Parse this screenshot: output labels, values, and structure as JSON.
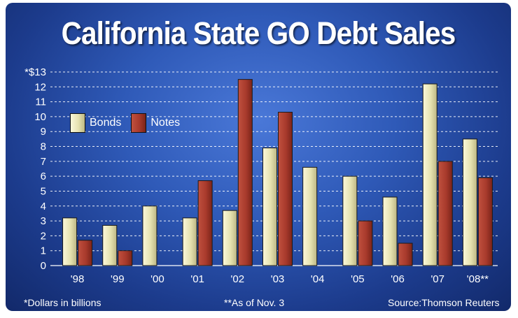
{
  "chart_data": {
    "type": "bar",
    "title": "California State GO Debt Sales",
    "categories": [
      "'98",
      "'99",
      "'00",
      "'01",
      "'02",
      "'03",
      "'04",
      "'05",
      "'06",
      "'07",
      "'08**"
    ],
    "series": [
      {
        "name": "Bonds",
        "values": [
          3.2,
          2.7,
          4.0,
          3.2,
          3.7,
          7.9,
          6.6,
          6.0,
          4.6,
          12.2,
          8.5
        ]
      },
      {
        "name": "Notes",
        "values": [
          1.7,
          1.0,
          0,
          5.7,
          12.5,
          10.3,
          0,
          3.0,
          1.5,
          7.0,
          5.9
        ]
      }
    ],
    "ylim": [
      0,
      13
    ],
    "yticks": [
      "0",
      "1",
      "2",
      "3",
      "4",
      "5",
      "6",
      "7",
      "8",
      "9",
      "10",
      "11",
      "12",
      "*$13"
    ],
    "grid": true,
    "legend_position": "top-left",
    "colors": {
      "Bonds": "#e6e2b0",
      "Notes": "#a83a2c"
    },
    "footnotes": {
      "units": "*Dollars in billions",
      "asof": "**As of Nov. 3",
      "source": "Source:Thomson Reuters"
    }
  }
}
